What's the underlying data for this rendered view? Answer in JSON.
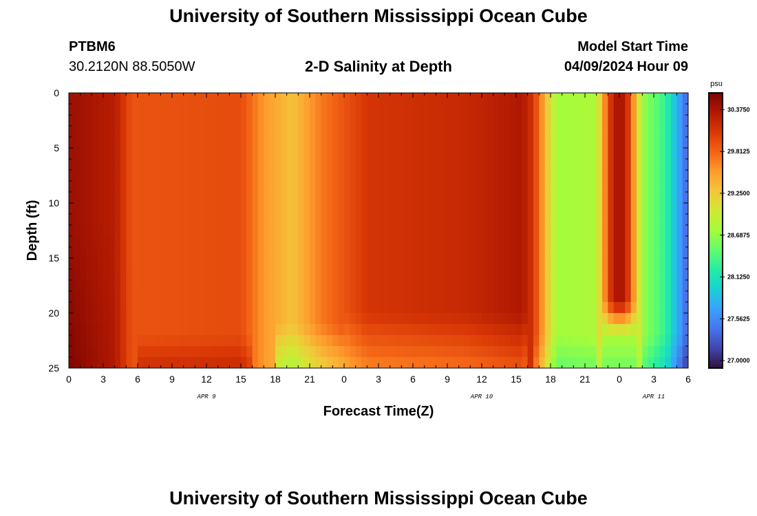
{
  "header": {
    "title": "University of Southern Mississippi Ocean Cube",
    "station_id": "PTBM6",
    "coordinates": "30.2120N  88.5050W",
    "plot_title": "2-D Salinity at Depth",
    "model_start_label": "Model Start Time",
    "model_start_value": "04/09/2024 Hour 09"
  },
  "footer": {
    "title": "University of Southern Mississippi Ocean Cube"
  },
  "colors": {
    "colormap": [
      "#30123b",
      "#4145ab",
      "#4675ed",
      "#39a2fc",
      "#1bcfd4",
      "#24eca6",
      "#61fc6c",
      "#a4fc3b",
      "#d1e834",
      "#f3c63a",
      "#fe9b2d",
      "#f36315",
      "#d93806",
      "#b11901",
      "#7a0403"
    ]
  },
  "chart_data": {
    "type": "heatmap",
    "title": "2-D Salinity at Depth",
    "xlabel": "Forecast Time(Z)",
    "ylabel": "Depth (ft)",
    "x_unit": "forecast hour since 04/09/2024 00Z",
    "x_range": [
      0,
      54
    ],
    "x_ticks": [
      0,
      3,
      6,
      9,
      12,
      15,
      18,
      21,
      24,
      27,
      30,
      33,
      36,
      39,
      42,
      45,
      48,
      51,
      54
    ],
    "x_tick_labels": [
      "0",
      "3",
      "6",
      "9",
      "12",
      "15",
      "18",
      "21",
      "0",
      "3",
      "6",
      "9",
      "12",
      "15",
      "18",
      "21",
      "0",
      "3",
      "6"
    ],
    "date_labels": [
      {
        "hour": 12,
        "label": "APR 9"
      },
      {
        "hour": 36,
        "label": "APR 10"
      },
      {
        "hour": 51,
        "label": "APR 11"
      }
    ],
    "y_range": [
      0,
      25
    ],
    "y_ticks": [
      0,
      5,
      10,
      15,
      20,
      25
    ],
    "y_tick_labels": [
      "0",
      "5",
      "10",
      "15",
      "20",
      "25"
    ],
    "colorbar": {
      "unit": "psu",
      "min": 26.9,
      "max": 30.6,
      "ticks": [
        30.375,
        29.8125,
        29.25,
        28.6875,
        28.125,
        27.5625,
        27.0
      ],
      "tick_labels": [
        "30.3750",
        "29.8125",
        "29.2500",
        "28.6875",
        "28.1250",
        "27.5625",
        "27.0000"
      ]
    },
    "grid_resolution": {
      "hours_per_cell": 0.5,
      "feet_per_cell": 1
    },
    "surface_profile_psu": [
      {
        "hour": 0,
        "psu": 30.45
      },
      {
        "hour": 4,
        "psu": 30.3
      },
      {
        "hour": 5.5,
        "psu": 29.9
      },
      {
        "hour": 15,
        "psu": 29.95
      },
      {
        "hour": 17,
        "psu": 29.55
      },
      {
        "hour": 19.5,
        "psu": 29.3
      },
      {
        "hour": 22,
        "psu": 29.7
      },
      {
        "hour": 26,
        "psu": 30.1
      },
      {
        "hour": 34.5,
        "psu": 30.2
      },
      {
        "hour": 39.5,
        "psu": 30.35
      },
      {
        "hour": 40.5,
        "psu": 30.1
      },
      {
        "hour": 41.5,
        "psu": 29.4
      },
      {
        "hour": 42.5,
        "psu": 28.75
      },
      {
        "hour": 46,
        "psu": 28.8
      },
      {
        "hour": 46.5,
        "psu": 29.4
      },
      {
        "hour": 47.5,
        "psu": 30.35
      },
      {
        "hour": 48.5,
        "psu": 30.35
      },
      {
        "hour": 49.5,
        "psu": 29.3
      },
      {
        "hour": 50,
        "psu": 28.7
      },
      {
        "hour": 52,
        "psu": 28.3
      },
      {
        "hour": 54,
        "psu": 27.3
      }
    ],
    "notes": "High salinity (~30.5 psu) near 0-5Z, fresher band ~29.3 psu near 19-21Z, saline tongue ~30.35 psu near 11-15Z Apr 10, low salinity (~28.7 psu) after 17Z Apr 10, surface-to-20 ft saline intrusion near 0Z Apr 11, fresher water at bottom layers."
  }
}
